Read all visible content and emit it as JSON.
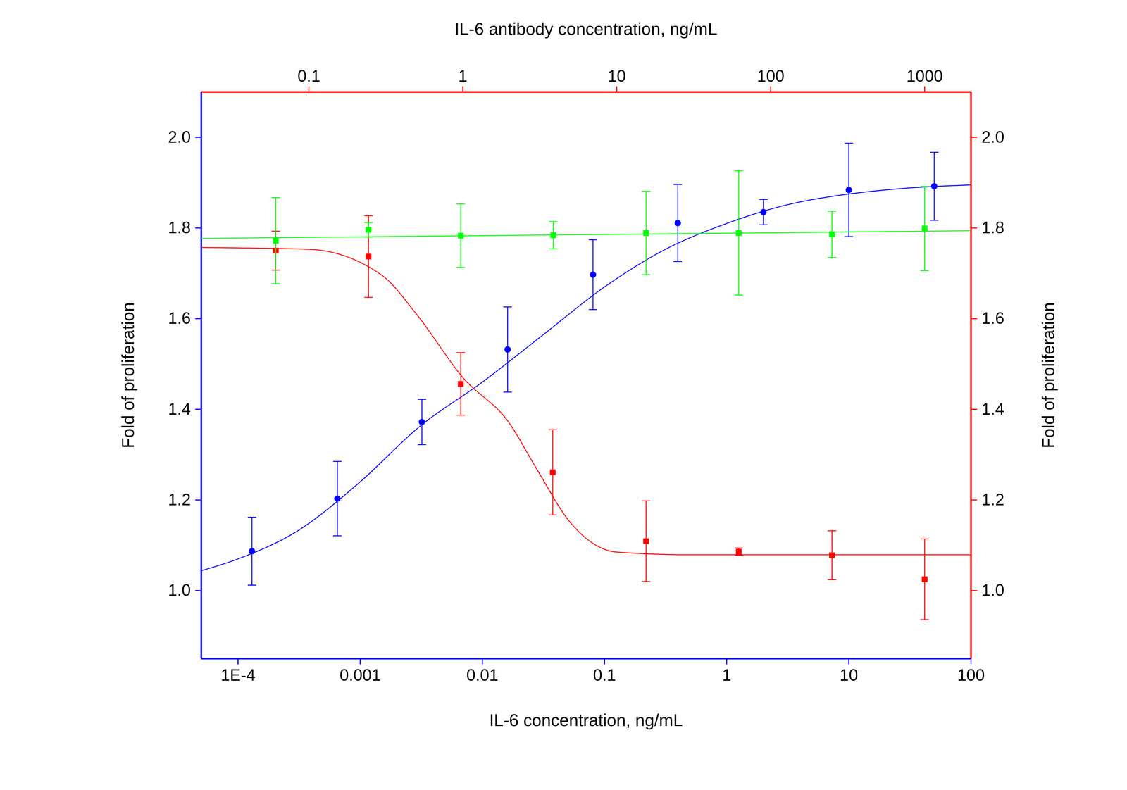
{
  "chart_data": {
    "type": "scatter",
    "xlabel": "IL-6 concentration, ng/mL",
    "x2label": "IL-6 antibody concentration, ng/mL",
    "ylabel": "Fold of proliferation",
    "y2label": "Fold of proliferation",
    "log": "x",
    "xlim": [
      5e-05,
      100
    ],
    "xticks": [
      {
        "value": 0.0001,
        "label": "1E-4"
      },
      0.001,
      0.01,
      0.1,
      1,
      10,
      100
    ],
    "x2lim": [
      0.02,
      2000
    ],
    "x2ticks": [
      0.1,
      1,
      10,
      100,
      1000
    ],
    "ylim": [
      0.85,
      2.1
    ],
    "yticks": [
      {
        "value": 1.0,
        "label": "1.0"
      },
      1.2,
      1.4,
      1.6,
      1.8,
      {
        "value": 2.0,
        "label": "2.0"
      }
    ],
    "y2lim": [
      0.85,
      2.1
    ],
    "y2ticks": [
      {
        "value": 1.0,
        "label": "1.0"
      },
      1.2,
      1.4,
      1.6,
      1.8,
      {
        "value": 2.0,
        "label": "2.0"
      }
    ],
    "series": [
      {
        "color": "#0000ff",
        "marker": "circle",
        "axis": "y",
        "x": [
          0.00013,
          0.00065,
          0.0032,
          0.0161,
          0.0805,
          0.398,
          2.0,
          10,
          50
        ],
        "values": [
          1.087,
          1.203,
          1.372,
          1.532,
          1.697,
          1.811,
          1.835,
          1.884,
          1.892
        ],
        "errors": [
          0.075,
          0.082,
          0.05,
          0.094,
          0.077,
          0.085,
          0.028,
          0.103,
          0.075
        ],
        "fit": {
          "x": [
            5e-05,
            0.0001,
            0.0003,
            0.001,
            0.003,
            0.01,
            0.03,
            0.1,
            0.3,
            1,
            3,
            10,
            30,
            100
          ],
          "values": [
            1.044,
            1.07,
            1.13,
            1.24,
            1.36,
            1.46,
            1.56,
            1.67,
            1.75,
            1.81,
            1.85,
            1.875,
            1.888,
            1.895
          ]
        }
      },
      {
        "color": "#ff0000",
        "marker": "square",
        "axis": "y2",
        "x": [
          0.061,
          0.244,
          0.97,
          3.84,
          15.5,
          62,
          250,
          1000
        ],
        "values": [
          1.75,
          1.737,
          1.456,
          1.261,
          1.109,
          1.086,
          1.078,
          1.025
        ],
        "errors": [
          0.043,
          0.09,
          0.069,
          0.094,
          0.089,
          0.008,
          0.054,
          0.089
        ],
        "fit": {
          "x": [
            0.02,
            0.1,
            0.3,
            0.5,
            1,
            2,
            3,
            5,
            10,
            30,
            2000
          ],
          "values": [
            1.757,
            1.753,
            1.695,
            1.61,
            1.47,
            1.37,
            1.27,
            1.15,
            1.085,
            1.079,
            1.079
          ]
        }
      },
      {
        "color": "#00ff00",
        "marker": "square",
        "axis": "y2",
        "x": [
          0.061,
          0.244,
          0.97,
          3.87,
          15.5,
          62,
          250,
          1000
        ],
        "values": [
          1.772,
          1.796,
          1.783,
          1.784,
          1.789,
          1.789,
          1.786,
          1.799
        ],
        "errors": [
          0.095,
          0.016,
          0.07,
          0.03,
          0.092,
          0.137,
          0.051,
          0.093
        ],
        "fit": {
          "x": [
            0.02,
            10,
            2000
          ],
          "values": [
            1.777,
            1.786,
            1.794
          ]
        }
      }
    ]
  }
}
